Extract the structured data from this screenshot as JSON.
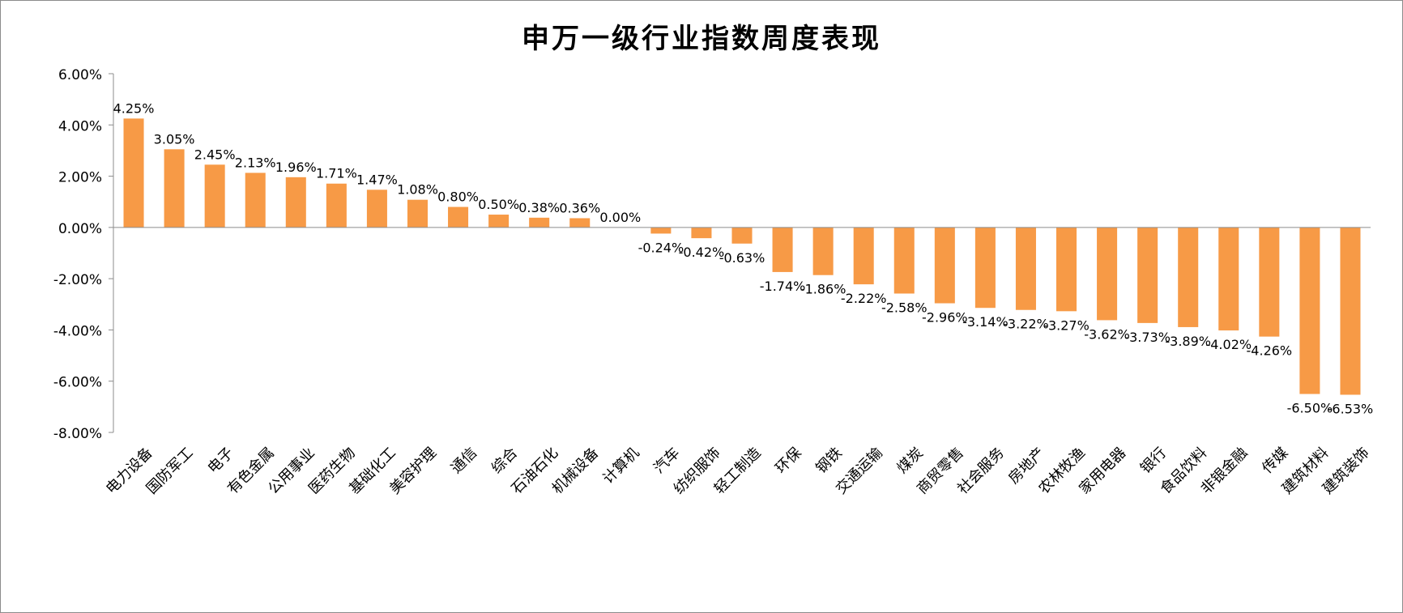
{
  "chart_data": {
    "type": "bar",
    "title": "申万一级行业指数周度表现",
    "xlabel": "",
    "ylabel": "",
    "ylim": [
      -8,
      6
    ],
    "yticks": [
      6,
      4,
      2,
      0,
      -2,
      -4,
      -6,
      -8
    ],
    "value_format": "percent_2dp",
    "grid": false,
    "legend": "none",
    "bar_color": "#F79A46",
    "categories": [
      "电力设备",
      "国防军工",
      "电子",
      "有色金属",
      "公用事业",
      "医药生物",
      "基础化工",
      "美容护理",
      "通信",
      "综合",
      "石油石化",
      "机械设备",
      "计算机",
      "汽车",
      "纺织服饰",
      "轻工制造",
      "环保",
      "钢铁",
      "交通运输",
      "煤炭",
      "商贸零售",
      "社会服务",
      "房地产",
      "农林牧渔",
      "家用电器",
      "银行",
      "食品饮料",
      "非银金融",
      "传媒",
      "建筑材料",
      "建筑装饰"
    ],
    "values": [
      4.25,
      3.05,
      2.45,
      2.13,
      1.96,
      1.71,
      1.47,
      1.08,
      0.8,
      0.5,
      0.38,
      0.36,
      0.0,
      -0.24,
      -0.42,
      -0.63,
      -1.74,
      -1.86,
      -2.22,
      -2.58,
      -2.96,
      -3.14,
      -3.22,
      -3.27,
      -3.62,
      -3.73,
      -3.89,
      -4.02,
      -4.26,
      -6.5,
      -6.53
    ]
  }
}
